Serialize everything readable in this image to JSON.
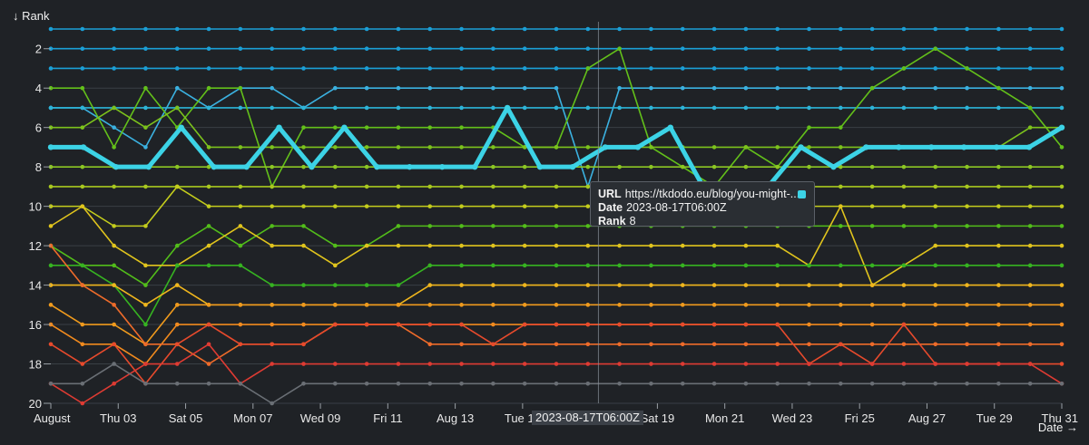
{
  "chart_data": {
    "type": "line",
    "y_axis": {
      "label": "↓ Rank",
      "ticks": [
        2,
        4,
        6,
        8,
        10,
        12,
        14,
        16,
        18,
        20
      ],
      "range": [
        1,
        20
      ],
      "inverted": true
    },
    "x_axis": {
      "label": "Date →",
      "range": [
        "2023-08-01",
        "2023-08-31"
      ],
      "ticks": [
        {
          "date": "2023-08-01",
          "label": "August"
        },
        {
          "date": "2023-08-03",
          "label": "Thu 03"
        },
        {
          "date": "2023-08-05",
          "label": "Sat 05"
        },
        {
          "date": "2023-08-07",
          "label": "Mon 07"
        },
        {
          "date": "2023-08-09",
          "label": "Wed 09"
        },
        {
          "date": "2023-08-11",
          "label": "Fri 11"
        },
        {
          "date": "2023-08-13",
          "label": "Aug 13"
        },
        {
          "date": "2023-08-15",
          "label": "Tue 15"
        },
        {
          "date": "2023-08-19",
          "label": "Sat 19"
        },
        {
          "date": "2023-08-21",
          "label": "Mon 21"
        },
        {
          "date": "2023-08-23",
          "label": "Wed 23"
        },
        {
          "date": "2023-08-25",
          "label": "Fri 25"
        },
        {
          "date": "2023-08-27",
          "label": "Aug 27"
        },
        {
          "date": "2023-08-29",
          "label": "Tue 29"
        },
        {
          "date": "2023-08-31",
          "label": "Thu 31"
        }
      ]
    },
    "grid": true,
    "cursor": {
      "date": "2023-08-17T06:00Z",
      "label": "2023-08-17T06:00Z"
    },
    "tooltip": {
      "url_key": "URL",
      "url_value": "https://tkdodo.eu/blog/you-might-...",
      "date_key": "Date",
      "date_value": "2023-08-17T06:00Z",
      "rank_key": "Rank",
      "rank_value": "8",
      "color": "#3cd3e6"
    },
    "series_colors": [
      "#1b9fd6",
      "#1b9fd6",
      "#1b9fd6",
      "#3bb1e0",
      "#2db4d8",
      "#63c01a",
      "#7cc21c",
      "#8cc623",
      "#a8c81f",
      "#c4cd1c",
      "#52bd1a",
      "#e0c41d",
      "#36b321",
      "#f0b61d",
      "#ef9a1d",
      "#f08a1e",
      "#ee6b2a",
      "#e74a2c",
      "#de3b33",
      "#6a6f75"
    ],
    "series": [
      {
        "values": [
          1,
          1,
          1,
          1,
          1,
          1,
          1,
          1,
          1,
          1,
          1,
          1,
          1,
          1,
          1,
          1,
          1,
          1,
          1,
          1,
          1,
          1,
          1,
          1,
          1,
          1,
          1,
          1,
          1,
          1,
          1,
          1,
          1
        ]
      },
      {
        "values": [
          2,
          2,
          2,
          2,
          2,
          2,
          2,
          2,
          2,
          2,
          2,
          2,
          2,
          2,
          2,
          2,
          2,
          2,
          2,
          2,
          2,
          2,
          2,
          2,
          2,
          2,
          2,
          2,
          2,
          2,
          2,
          2,
          2
        ]
      },
      {
        "values": [
          3,
          3,
          3,
          3,
          3,
          3,
          3,
          3,
          3,
          3,
          3,
          3,
          3,
          3,
          3,
          3,
          3,
          3,
          3,
          3,
          3,
          3,
          3,
          3,
          3,
          3,
          3,
          3,
          3,
          3,
          3,
          3,
          3
        ]
      },
      {
        "values": [
          5,
          5,
          6,
          7,
          4,
          5,
          4,
          4,
          5,
          4,
          4,
          4,
          4,
          4,
          4,
          4,
          4,
          9,
          4,
          4,
          4,
          4,
          4,
          4,
          4,
          4,
          4,
          4,
          4,
          4,
          4,
          4,
          4
        ]
      },
      {
        "values": [
          5,
          5,
          5,
          5,
          5,
          5,
          5,
          5,
          5,
          5,
          5,
          5,
          5,
          5,
          5,
          5,
          5,
          5,
          5,
          5,
          5,
          5,
          5,
          5,
          5,
          5,
          5,
          5,
          5,
          5,
          5,
          5,
          5
        ]
      },
      {
        "values": [
          4,
          4,
          7,
          4,
          6,
          4,
          4,
          9,
          6,
          6,
          6,
          6,
          6,
          6,
          6,
          7,
          7,
          3,
          2,
          7,
          8,
          9,
          7,
          8,
          6,
          6,
          4,
          3,
          2,
          3,
          4,
          5,
          7
        ]
      },
      {
        "values": [
          6,
          6,
          5,
          6,
          5,
          7,
          7,
          7,
          7,
          7,
          7,
          7,
          7,
          7,
          7,
          7,
          7,
          7,
          7,
          7,
          7,
          7,
          7,
          7,
          7,
          7,
          7,
          7,
          7,
          7,
          7,
          6,
          6
        ]
      },
      {
        "values": [
          8,
          8,
          8,
          8,
          8,
          8,
          8,
          8,
          8,
          8,
          8,
          8,
          8,
          8,
          8,
          8,
          8,
          8,
          8,
          8,
          8,
          8,
          8,
          8,
          8,
          8,
          8,
          8,
          8,
          8,
          8,
          8,
          8
        ]
      },
      {
        "values": [
          9,
          9,
          9,
          9,
          9,
          9,
          9,
          9,
          9,
          9,
          9,
          9,
          9,
          9,
          9,
          9,
          9,
          9,
          9,
          9,
          9,
          9,
          9,
          9,
          9,
          9,
          9,
          9,
          9,
          9,
          9,
          9,
          9
        ]
      },
      {
        "values": [
          10,
          10,
          11,
          11,
          9,
          10,
          10,
          10,
          10,
          10,
          10,
          10,
          10,
          10,
          10,
          10,
          10,
          10,
          10,
          10,
          10,
          10,
          10,
          10,
          10,
          10,
          10,
          10,
          10,
          10,
          10,
          10,
          10
        ]
      },
      {
        "values": [
          12,
          13,
          13,
          14,
          12,
          11,
          12,
          11,
          11,
          12,
          12,
          11,
          11,
          11,
          11,
          11,
          11,
          11,
          11,
          11,
          11,
          11,
          11,
          11,
          11,
          11,
          11,
          11,
          11,
          11,
          11,
          11,
          11
        ]
      },
      {
        "values": [
          11,
          10,
          12,
          13,
          13,
          12,
          11,
          12,
          12,
          13,
          12,
          12,
          12,
          12,
          12,
          12,
          12,
          12,
          12,
          12,
          12,
          12,
          12,
          12,
          13,
          10,
          14,
          13,
          12,
          12,
          12,
          12,
          12
        ]
      },
      {
        "values": [
          13,
          13,
          14,
          16,
          13,
          13,
          13,
          14,
          14,
          14,
          14,
          14,
          13,
          13,
          13,
          13,
          13,
          13,
          13,
          13,
          13,
          13,
          13,
          13,
          13,
          13,
          13,
          13,
          13,
          13,
          13,
          13,
          13
        ]
      },
      {
        "values": [
          14,
          14,
          14,
          15,
          14,
          15,
          15,
          15,
          15,
          15,
          15,
          15,
          14,
          14,
          14,
          14,
          14,
          14,
          14,
          14,
          14,
          14,
          14,
          14,
          14,
          14,
          14,
          14,
          14,
          14,
          14,
          14,
          14
        ]
      },
      {
        "values": [
          15,
          16,
          16,
          17,
          15,
          15,
          15,
          15,
          15,
          15,
          15,
          15,
          15,
          15,
          15,
          15,
          15,
          15,
          15,
          15,
          15,
          15,
          15,
          15,
          15,
          15,
          15,
          15,
          15,
          15,
          15,
          15,
          15
        ]
      },
      {
        "values": [
          16,
          17,
          17,
          18,
          16,
          16,
          16,
          16,
          16,
          16,
          16,
          16,
          16,
          16,
          16,
          16,
          16,
          16,
          16,
          16,
          16,
          16,
          16,
          16,
          16,
          16,
          16,
          16,
          16,
          16,
          16,
          16,
          16
        ]
      },
      {
        "values": [
          12,
          14,
          15,
          17,
          17,
          18,
          17,
          17,
          17,
          16,
          16,
          16,
          17,
          17,
          17,
          17,
          17,
          17,
          17,
          17,
          17,
          17,
          17,
          17,
          17,
          17,
          17,
          17,
          17,
          17,
          17,
          17,
          17
        ]
      },
      {
        "values": [
          17,
          18,
          17,
          19,
          17,
          16,
          17,
          17,
          17,
          16,
          16,
          16,
          16,
          16,
          17,
          16,
          16,
          16,
          16,
          16,
          16,
          16,
          16,
          16,
          18,
          17,
          18,
          16,
          18,
          18,
          18,
          18,
          18
        ]
      },
      {
        "values": [
          19,
          20,
          19,
          18,
          18,
          17,
          19,
          18,
          18,
          18,
          18,
          18,
          18,
          18,
          18,
          18,
          18,
          18,
          18,
          18,
          18,
          18,
          18,
          18,
          18,
          18,
          18,
          18,
          18,
          18,
          18,
          18,
          19
        ]
      },
      {
        "values": [
          19,
          19,
          18,
          19,
          19,
          19,
          19,
          20,
          19,
          19,
          19,
          19,
          19,
          19,
          19,
          19,
          19,
          19,
          19,
          19,
          19,
          19,
          19,
          19,
          19,
          19,
          19,
          19,
          19,
          19,
          19,
          19,
          19
        ]
      }
    ],
    "highlight_series": {
      "name": "https://tkdodo.eu/blog/you-might-...",
      "color": "#3cd3e6",
      "values": [
        7,
        7,
        8,
        8,
        6,
        8,
        8,
        6,
        8,
        6,
        8,
        8,
        8,
        8,
        5,
        8,
        8,
        7,
        7,
        6,
        9,
        9,
        9,
        7,
        8,
        7,
        7,
        7,
        7,
        7,
        7,
        6
      ]
    }
  }
}
